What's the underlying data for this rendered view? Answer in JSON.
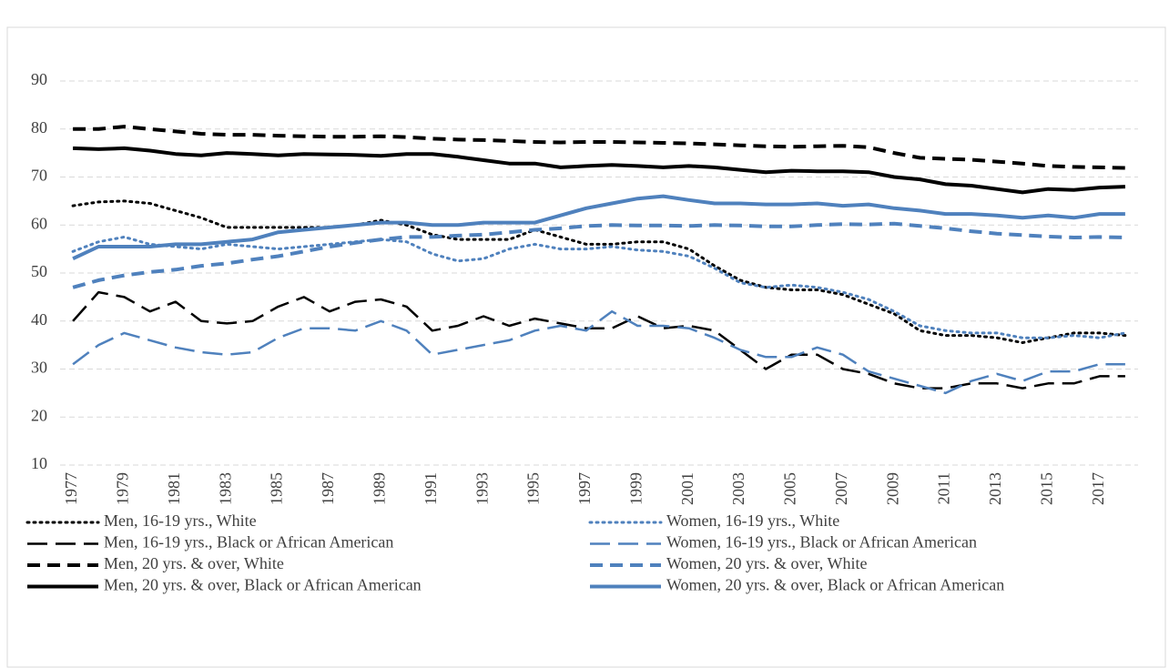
{
  "chart_data": {
    "type": "line",
    "categories": [
      "1977",
      null,
      "1979",
      null,
      "1981",
      null,
      "1983",
      null,
      "1985",
      null,
      "1987",
      null,
      "1989",
      null,
      "1991",
      null,
      "1993",
      null,
      "1995",
      null,
      "1997",
      null,
      "1999",
      null,
      "2001",
      null,
      "2003",
      null,
      "2005",
      null,
      "2007",
      null,
      "2009",
      null,
      "2011",
      null,
      "2013",
      null,
      "2015",
      null,
      "2017",
      null
    ],
    "ylim": [
      10,
      90
    ],
    "yticks": [
      10,
      20,
      30,
      40,
      50,
      60,
      70,
      80,
      90
    ],
    "grid": true,
    "series": [
      {
        "name": "Men, 16-19 yrs., White",
        "color": "#000000",
        "line_style": "dot",
        "values": [
          64,
          64.8,
          65,
          64.5,
          63,
          61.5,
          59.5,
          59.5,
          59.5,
          59.5,
          59.5,
          60,
          61,
          60,
          58,
          57,
          57,
          57,
          59,
          57.5,
          56,
          56,
          56.5,
          56.5,
          55,
          51.5,
          48.5,
          47,
          46.5,
          46.5,
          45.5,
          43.5,
          41.5,
          38,
          37,
          37,
          36.5,
          35.5,
          36.5,
          37.5,
          37.5,
          37
        ]
      },
      {
        "name": "Women, 16-19 yrs., White",
        "color": "#4f81bd",
        "line_style": "dot",
        "values": [
          54.5,
          56.5,
          57.5,
          56,
          55.5,
          55,
          56,
          55.5,
          55,
          55.5,
          56,
          56.5,
          57,
          56.5,
          54,
          52.5,
          53,
          55,
          56,
          55,
          55,
          55.5,
          54.8,
          54.5,
          53.5,
          51,
          48,
          47,
          47.5,
          47,
          46,
          44.5,
          42,
          39,
          38,
          37.5,
          37.5,
          36.5,
          36.5,
          37,
          36.5,
          37.5
        ]
      },
      {
        "name": "Men, 16-19 yrs., Black or African American",
        "color": "#000000",
        "line_style": "long-dash",
        "values": [
          40,
          46,
          45,
          42,
          44,
          40,
          39.5,
          40,
          43,
          45,
          42,
          44,
          44.5,
          43,
          38,
          39,
          41,
          39,
          40.5,
          39.5,
          38.5,
          38.5,
          41,
          38.5,
          39,
          38,
          34,
          30,
          33,
          33,
          30,
          29,
          27,
          26,
          26,
          27,
          27,
          26,
          27,
          27,
          28.5,
          28.5
        ]
      },
      {
        "name": "Women, 16-19 yrs., Black or African American",
        "color": "#4f81bd",
        "line_style": "long-dash",
        "values": [
          31,
          35,
          37.5,
          36,
          34.5,
          33.5,
          33,
          33.5,
          36.5,
          38.5,
          38.5,
          38,
          40,
          38,
          33,
          34,
          35,
          36,
          38,
          39,
          38,
          42,
          39,
          39,
          38.5,
          36.5,
          34,
          32.5,
          32.5,
          34.5,
          33,
          29.5,
          28,
          26.5,
          25,
          27.5,
          29,
          27.5,
          29.5,
          29.5,
          31,
          31
        ]
      },
      {
        "name": "Men, 20 yrs. & over, White",
        "color": "#000000",
        "line_style": "dash",
        "values": [
          80,
          80,
          80.5,
          80,
          79.5,
          79,
          78.8,
          78.8,
          78.6,
          78.5,
          78.4,
          78.4,
          78.5,
          78.3,
          78,
          77.8,
          77.7,
          77.5,
          77.3,
          77.2,
          77.3,
          77.3,
          77.2,
          77.1,
          77,
          76.8,
          76.6,
          76.4,
          76.3,
          76.4,
          76.5,
          76.2,
          75,
          74,
          73.8,
          73.6,
          73.2,
          72.8,
          72.3,
          72.1,
          72,
          71.9
        ]
      },
      {
        "name": "Women, 20 yrs. & over, White",
        "color": "#4f81bd",
        "line_style": "dash",
        "values": [
          47,
          48.5,
          49.5,
          50.2,
          50.7,
          51.5,
          52,
          52.8,
          53.5,
          54.5,
          55.5,
          56.3,
          57,
          57.5,
          57.5,
          57.8,
          58,
          58.5,
          59,
          59.3,
          59.8,
          60,
          59.9,
          59.9,
          59.8,
          60,
          59.9,
          59.7,
          59.7,
          60,
          60.2,
          60.1,
          60.3,
          59.8,
          59.3,
          58.7,
          58.2,
          57.9,
          57.6,
          57.4,
          57.5,
          57.4
        ]
      },
      {
        "name": "Men, 20 yrs. & over, Black or African American",
        "color": "#000000",
        "line_style": "solid",
        "values": [
          76,
          75.8,
          76,
          75.5,
          74.8,
          74.5,
          75,
          74.8,
          74.5,
          74.8,
          74.7,
          74.6,
          74.4,
          74.8,
          74.8,
          74.2,
          73.5,
          72.8,
          72.8,
          72,
          72.3,
          72.5,
          72.3,
          72,
          72.3,
          72,
          71.5,
          71,
          71.3,
          71.2,
          71.2,
          71,
          70,
          69.5,
          68.5,
          68.2,
          67.5,
          66.8,
          67.5,
          67.3,
          67.8,
          68
        ]
      },
      {
        "name": "Women, 20 yrs. & over, Black or African American",
        "color": "#4f81bd",
        "line_style": "solid",
        "values": [
          53,
          55.5,
          55.5,
          55.5,
          56,
          56,
          56.5,
          57,
          58.5,
          59,
          59.5,
          60,
          60.5,
          60.5,
          60,
          60,
          60.5,
          60.5,
          60.5,
          62,
          63.5,
          64.5,
          65.5,
          66,
          65.2,
          64.5,
          64.5,
          64.3,
          64.3,
          64.5,
          64,
          64.3,
          63.5,
          63,
          62.3,
          62.3,
          62,
          61.5,
          62,
          61.5,
          62.3,
          62.3
        ]
      }
    ]
  }
}
